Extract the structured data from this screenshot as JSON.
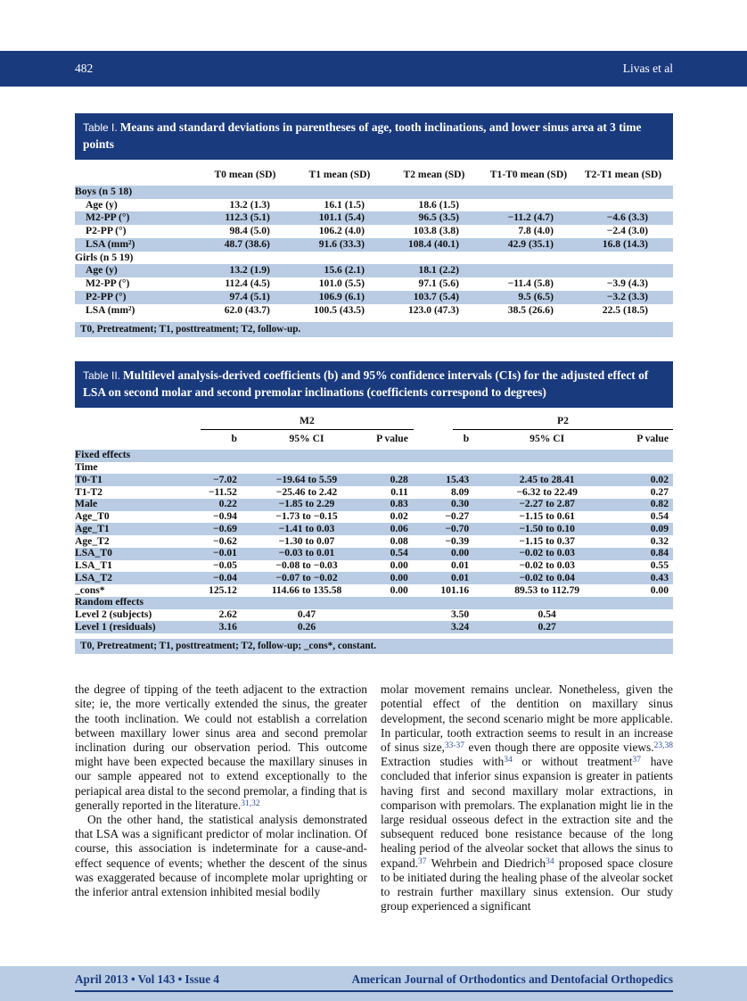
{
  "header": {
    "page_number": "482",
    "running_author": "Livas et al"
  },
  "footer": {
    "issue_info": "April 2013 • Vol 143 • Issue 4",
    "journal_name": "American Journal of Orthodontics and Dentofacial Orthopedics"
  },
  "colors": {
    "navy": "#1a3a7e",
    "row_shade": "#b9cce4",
    "citation_blue": "#2e4e9e"
  },
  "table1": {
    "label": "Table I.",
    "title": "Means and standard deviations in parentheses of age, tooth inclinations, and lower sinus area at 3 time points",
    "columns": [
      "",
      "T0 mean (SD)",
      "T1 mean (SD)",
      "T2 mean (SD)",
      "T1-T0 mean (SD)",
      "T2-T1 mean (SD)"
    ],
    "col_widths": [
      "21%",
      "15.8%",
      "15.8%",
      "15.8%",
      "15.8%",
      "15.8%"
    ],
    "rows": [
      {
        "type": "group",
        "label": "Boys (n 5 18)",
        "indent": 0,
        "cells": [
          "",
          "",
          "",
          "",
          ""
        ]
      },
      {
        "type": "data",
        "label": "Age (y)",
        "indent": 1,
        "cells": [
          "13.2 (1.3)",
          "16.1 (1.5)",
          "18.6 (1.5)",
          "",
          ""
        ]
      },
      {
        "type": "data",
        "label": "M2-PP (°)",
        "indent": 1,
        "cells": [
          "112.3 (5.1)",
          "101.1 (5.4)",
          "96.5 (3.5)",
          "−11.2 (4.7)",
          "−4.6 (3.3)"
        ]
      },
      {
        "type": "data",
        "label": "P2-PP (°)",
        "indent": 1,
        "cells": [
          "98.4 (5.0)",
          "106.2 (4.0)",
          "103.8 (3.8)",
          "7.8 (4.0)",
          "−2.4 (3.0)"
        ]
      },
      {
        "type": "data",
        "label": "LSA (mm²)",
        "indent": 1,
        "cells": [
          "48.7 (38.6)",
          "91.6 (33.3)",
          "108.4 (40.1)",
          "42.9 (35.1)",
          "16.8 (14.3)"
        ]
      },
      {
        "type": "group",
        "label": "Girls (n 5 19)",
        "indent": 0,
        "cells": [
          "",
          "",
          "",
          "",
          ""
        ]
      },
      {
        "type": "data",
        "label": "Age (y)",
        "indent": 1,
        "cells": [
          "13.2 (1.9)",
          "15.6 (2.1)",
          "18.1 (2.2)",
          "",
          ""
        ]
      },
      {
        "type": "data",
        "label": "M2-PP (°)",
        "indent": 1,
        "cells": [
          "112.4 (4.5)",
          "101.0 (5.5)",
          "97.1 (5.6)",
          "−11.4 (5.8)",
          "−3.9 (4.3)"
        ]
      },
      {
        "type": "data",
        "label": "P2-PP (°)",
        "indent": 1,
        "cells": [
          "97.4 (5.1)",
          "106.9 (6.1)",
          "103.7 (5.4)",
          "9.5 (6.5)",
          "−3.2 (3.3)"
        ]
      },
      {
        "type": "data",
        "label": "LSA (mm²)",
        "indent": 1,
        "cells": [
          "62.0 (43.7)",
          "100.5 (43.5)",
          "123.0 (47.3)",
          "38.5 (26.6)",
          "22.5 (18.5)"
        ]
      }
    ],
    "footnote": "T0, Pretreatment; T1, posttreatment; T2, follow-up."
  },
  "table2": {
    "label": "Table II.",
    "title": "Multilevel analysis-derived coefficients (b) and 95% confidence intervals (CIs) for the adjusted effect of LSA on second molar and second premolar inclinations (coefficients correspond to degrees)",
    "groups": [
      "M2",
      "P2"
    ],
    "columns": [
      "",
      "b",
      "95% CI",
      "P value",
      "b",
      "95% CI",
      "P value"
    ],
    "col_widths": [
      "21%",
      "8.5%",
      "18.5%",
      "11%",
      "9%",
      "19.5%",
      "12.5%"
    ],
    "rows": [
      {
        "type": "group",
        "label": "Fixed effects",
        "indent": 0,
        "cells": [
          "",
          "",
          "",
          "",
          "",
          ""
        ]
      },
      {
        "type": "sub",
        "label": "Time",
        "indent": 1,
        "cells": [
          "",
          "",
          "",
          "",
          "",
          ""
        ]
      },
      {
        "type": "data",
        "label": "T0-T1",
        "indent": 2,
        "cells": [
          "−7.02",
          "−19.64 to 5.59",
          "0.28",
          "15.43",
          "2.45 to 28.41",
          "0.02"
        ]
      },
      {
        "type": "data",
        "label": "T1-T2",
        "indent": 2,
        "cells": [
          "−11.52",
          "−25.46 to 2.42",
          "0.11",
          "8.09",
          "−6.32 to 22.49",
          "0.27"
        ]
      },
      {
        "type": "data",
        "label": "Male",
        "indent": 1,
        "cells": [
          "0.22",
          "−1.85 to 2.29",
          "0.83",
          "0.30",
          "−2.27 to 2.87",
          "0.82"
        ]
      },
      {
        "type": "data",
        "label": "Age_T0",
        "indent": 1,
        "cells": [
          "−0.94",
          "−1.73 to −0.15",
          "0.02",
          "−0.27",
          "−1.15 to 0.61",
          "0.54"
        ]
      },
      {
        "type": "data",
        "label": "Age_T1",
        "indent": 1,
        "cells": [
          "−0.69",
          "−1.41 to 0.03",
          "0.06",
          "−0.70",
          "−1.50 to 0.10",
          "0.09"
        ]
      },
      {
        "type": "data",
        "label": "Age_T2",
        "indent": 1,
        "cells": [
          "−0.62",
          "−1.30 to 0.07",
          "0.08",
          "−0.39",
          "−1.15 to 0.37",
          "0.32"
        ]
      },
      {
        "type": "data",
        "label": "LSA_T0",
        "indent": 1,
        "cells": [
          "−0.01",
          "−0.03 to 0.01",
          "0.54",
          "0.00",
          "−0.02 to 0.03",
          "0.84"
        ]
      },
      {
        "type": "data",
        "label": "LSA_T1",
        "indent": 1,
        "cells": [
          "−0.05",
          "−0.08 to −0.03",
          "0.00",
          "0.01",
          "−0.02 to 0.03",
          "0.55"
        ]
      },
      {
        "type": "data",
        "label": "LSA_T2",
        "indent": 1,
        "cells": [
          "−0.04",
          "−0.07 to −0.02",
          "0.00",
          "0.01",
          "−0.02 to 0.04",
          "0.43"
        ]
      },
      {
        "type": "data",
        "label": "_cons*",
        "indent": 1,
        "cells": [
          "125.12",
          "114.66 to 135.58",
          "0.00",
          "101.16",
          "89.53 to 112.79",
          "0.00"
        ]
      },
      {
        "type": "group",
        "label": "Random effects",
        "indent": 0,
        "cells": [
          "",
          "",
          "",
          "",
          "",
          ""
        ]
      },
      {
        "type": "data",
        "label": "Level 2 (subjects)",
        "indent": 1,
        "cells": [
          "2.62",
          "0.47",
          "",
          "3.50",
          "0.54",
          ""
        ]
      },
      {
        "type": "data",
        "label": "Level 1 (residuals)",
        "indent": 1,
        "cells": [
          "3.16",
          "0.26",
          "",
          "3.24",
          "0.27",
          ""
        ]
      }
    ],
    "footnote": "T0, Pretreatment; T1, posttreatment; T2, follow-up; _cons*, constant."
  },
  "body": {
    "left": [
      {
        "indent": false,
        "segments": [
          {
            "t": "the degree of tipping of the teeth adjacent to the extraction site; ie, the more vertically extended the sinus, the greater the tooth inclination. We could not establish a correlation between maxillary lower sinus area and second premolar inclination during our observation period. This outcome might have been expected because the maxillary sinuses in our sample appeared not to extend exceptionally to the periapical area distal to the second premolar, a finding that is generally reported in the literature."
          },
          {
            "t": "31,32",
            "sup": true
          }
        ]
      },
      {
        "indent": true,
        "segments": [
          {
            "t": "On the other hand, the statistical analysis demonstrated that LSA was a significant predictor of molar inclination. Of course, this association is indeterminate for a cause-and-effect sequence of events; whether the descent of the sinus was exaggerated because of incomplete molar uprighting or the inferior antral extension inhibited mesial bodily"
          }
        ]
      }
    ],
    "right": [
      {
        "indent": false,
        "segments": [
          {
            "t": "molar movement remains unclear. Nonetheless, given the potential effect of the dentition on maxillary sinus development, the second scenario might be more applicable. In particular, tooth extraction seems to result in an increase of sinus size,"
          },
          {
            "t": "33-37",
            "sup": true
          },
          {
            "t": " even though there are opposite views."
          },
          {
            "t": "23,38",
            "sup": true
          },
          {
            "t": " Extraction studies with"
          },
          {
            "t": "34",
            "sup": true
          },
          {
            "t": " or without treatment"
          },
          {
            "t": "37",
            "sup": true
          },
          {
            "t": " have concluded that inferior sinus expansion is greater in patients having first and second maxillary molar extractions, in comparison with premolars. The explanation might lie in the large residual osseous defect in the extraction site and the subsequent reduced bone resistance because of the long healing period of the alveolar socket that allows the sinus to expand."
          },
          {
            "t": "37",
            "sup": true
          },
          {
            "t": " Wehrbein and Diedrich"
          },
          {
            "t": "34",
            "sup": true
          },
          {
            "t": " proposed space closure to be initiated during the healing phase of the alveolar socket to restrain further maxillary sinus extension. Our study group experienced a significant"
          }
        ]
      }
    ]
  }
}
